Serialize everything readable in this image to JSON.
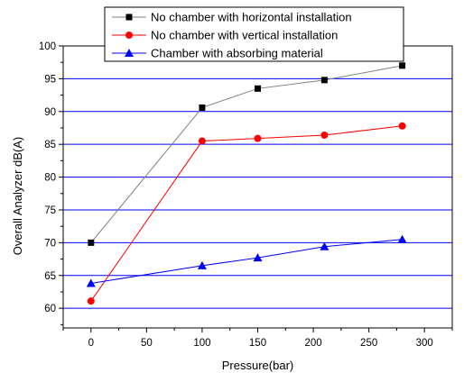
{
  "chart_data": {
    "type": "line",
    "xlabel": "Pressure(bar)",
    "ylabel": "Overall Analyzer dB(A)",
    "xlim": [
      -25,
      325
    ],
    "ylim": [
      57,
      100
    ],
    "xticks": [
      0,
      50,
      100,
      150,
      200,
      250,
      300
    ],
    "yticks": [
      60,
      65,
      70,
      75,
      80,
      85,
      90,
      95,
      100
    ],
    "grid": "horizontal",
    "legend_position": "top-right",
    "series": [
      {
        "name": "No chamber with horizontal installation",
        "color": "#000000",
        "line_color": "#808080",
        "marker": "square",
        "x": [
          0,
          100,
          150,
          210,
          280
        ],
        "y": [
          70.0,
          90.6,
          93.5,
          94.8,
          97.0
        ]
      },
      {
        "name": "No chamber with vertical installation",
        "color": "#ff0000",
        "line_color": "#ff0000",
        "marker": "circle",
        "x": [
          0,
          100,
          150,
          210,
          280
        ],
        "y": [
          61.1,
          85.5,
          85.9,
          86.4,
          87.8
        ]
      },
      {
        "name": "Chamber with absorbing material",
        "color": "#0000ff",
        "line_color": "#0000ff",
        "marker": "triangle",
        "x": [
          0,
          100,
          150,
          210,
          280
        ],
        "y": [
          63.8,
          66.5,
          67.7,
          69.4,
          70.5
        ]
      }
    ]
  },
  "colors": {
    "gridline": "#0000ff",
    "axis": "#000000"
  }
}
